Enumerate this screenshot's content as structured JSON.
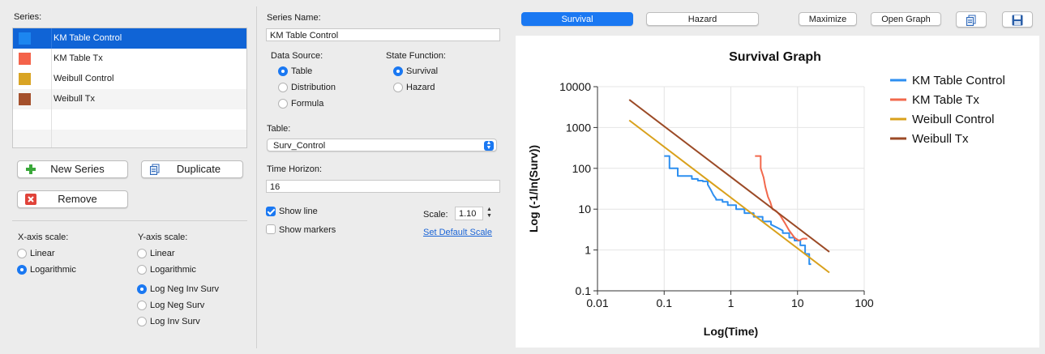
{
  "left": {
    "series_label": "Series:",
    "series": [
      {
        "name": "KM Table Control",
        "color": "#1c86f0",
        "selected": true
      },
      {
        "name": "KM Table Tx",
        "color": "#f4634a",
        "selected": false
      },
      {
        "name": "Weibull Control",
        "color": "#d9a424",
        "selected": false
      },
      {
        "name": "Weibull Tx",
        "color": "#a4502c",
        "selected": false
      }
    ],
    "buttons": {
      "new_series": "New Series",
      "duplicate": "Duplicate",
      "remove": "Remove"
    },
    "x_scale": {
      "label": "X-axis scale:",
      "options": [
        "Linear",
        "Logarithmic"
      ],
      "selected": "Logarithmic"
    },
    "y_scale": {
      "label": "Y-axis scale:",
      "options": [
        "Linear",
        "Logarithmic",
        "Log Neg Inv Surv",
        "Log Neg Surv",
        "Log Inv Surv"
      ],
      "selected": "Log Neg Inv Surv"
    }
  },
  "middle": {
    "series_name_label": "Series Name:",
    "series_name_value": "KM Table Control",
    "data_source": {
      "label": "Data Source:",
      "options": [
        "Table",
        "Distribution",
        "Formula"
      ],
      "selected": "Table"
    },
    "state_function": {
      "label": "State Function:",
      "options": [
        "Survival",
        "Hazard"
      ],
      "selected": "Survival"
    },
    "table_label": "Table:",
    "table_value": "Surv_Control",
    "time_horizon_label": "Time Horizon:",
    "time_horizon_value": "16",
    "show_line": {
      "label": "Show line",
      "checked": true
    },
    "show_markers": {
      "label": "Show markers",
      "checked": false
    },
    "scale_label": "Scale:",
    "scale_value": "1.10",
    "set_default_scale": "Set Default Scale"
  },
  "toolbar": {
    "survival": "Survival",
    "hazard": "Hazard",
    "active": "Survival",
    "maximize": "Maximize",
    "open_graph": "Open Graph",
    "copy_icon": "copy-icon",
    "save_icon": "save-icon"
  },
  "chart_data": {
    "type": "line",
    "title": "Survival Graph",
    "xlabel": "Log(Time)",
    "ylabel": "Log (-1/ln(Surv))",
    "x_scale": "log",
    "y_scale": "log",
    "xlim": [
      0.01,
      100
    ],
    "ylim": [
      0.1,
      10000
    ],
    "x_ticks": [
      "0.01",
      "0.1",
      "1",
      "10",
      "100"
    ],
    "y_ticks": [
      "10000",
      "1000",
      "100",
      "10",
      "1",
      "0.1"
    ],
    "grid": true,
    "legend_position": "right",
    "series": [
      {
        "name": "KM Table Control",
        "color": "#2d8ff0",
        "step": true,
        "x": [
          0.1,
          0.12,
          0.12,
          0.16,
          0.16,
          0.26,
          0.26,
          0.32,
          0.32,
          0.38,
          0.38,
          0.45,
          0.45,
          0.5,
          0.55,
          0.6,
          0.6,
          0.75,
          0.75,
          0.9,
          0.9,
          1.2,
          1.2,
          1.6,
          1.6,
          2.2,
          2.2,
          3.0,
          3.0,
          4.0,
          4.0,
          5.0,
          6.0,
          6.0,
          7.5,
          7.5,
          9.0,
          9.0,
          11.0,
          11.0,
          13.0,
          13.0,
          15.0,
          15.0,
          16.0
        ],
        "y": [
          200,
          200,
          100,
          100,
          65,
          65,
          55,
          55,
          50,
          50,
          48,
          48,
          40,
          30,
          22,
          18,
          17,
          17,
          15,
          15,
          12.5,
          12.5,
          10,
          10,
          8,
          8,
          6.5,
          6.5,
          5,
          5,
          4.2,
          3.5,
          3,
          2.6,
          2.6,
          2,
          2,
          1.7,
          1.7,
          1.3,
          1.3,
          0.8,
          0.8,
          0.45,
          0.45
        ]
      },
      {
        "name": "KM Table Tx",
        "color": "#f2684c",
        "step": true,
        "x": [
          2.3,
          2.8,
          2.8,
          3.1,
          3.3,
          3.6,
          3.9,
          4.2,
          4.2,
          4.8,
          5.5,
          6.5,
          7.5,
          9.0,
          10.5,
          12.0,
          14.0
        ],
        "y": [
          200,
          200,
          100,
          60,
          35,
          20,
          15,
          10,
          10,
          9,
          7,
          4.5,
          3,
          2,
          1.7,
          1.9,
          1.9
        ]
      },
      {
        "name": "Weibull Control",
        "color": "#d9a11c",
        "x": [
          0.03,
          30
        ],
        "y": [
          1500,
          0.28
        ]
      },
      {
        "name": "Weibull Tx",
        "color": "#9b4a26",
        "x": [
          0.03,
          30
        ],
        "y": [
          4800,
          0.9
        ]
      }
    ]
  }
}
